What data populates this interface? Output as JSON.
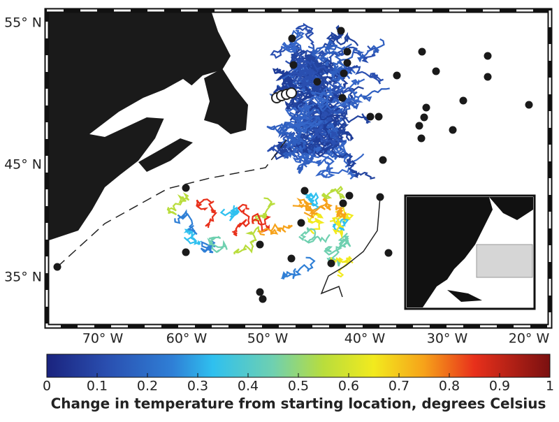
{
  "map": {
    "lat_labels": [
      "55° N",
      "45° N",
      "35° N"
    ],
    "lon_labels": [
      "70° W",
      "60° W",
      "50° W",
      "40° W",
      "30° W",
      "20° W"
    ]
  },
  "colorbar": {
    "lim": [
      0,
      1
    ],
    "ticks": [
      0,
      0.1,
      0.2,
      0.3,
      0.4,
      0.5,
      0.6,
      0.7,
      0.8,
      0.9,
      1
    ],
    "label": "Change in temperature from starting location, degrees Celsius"
  }
}
